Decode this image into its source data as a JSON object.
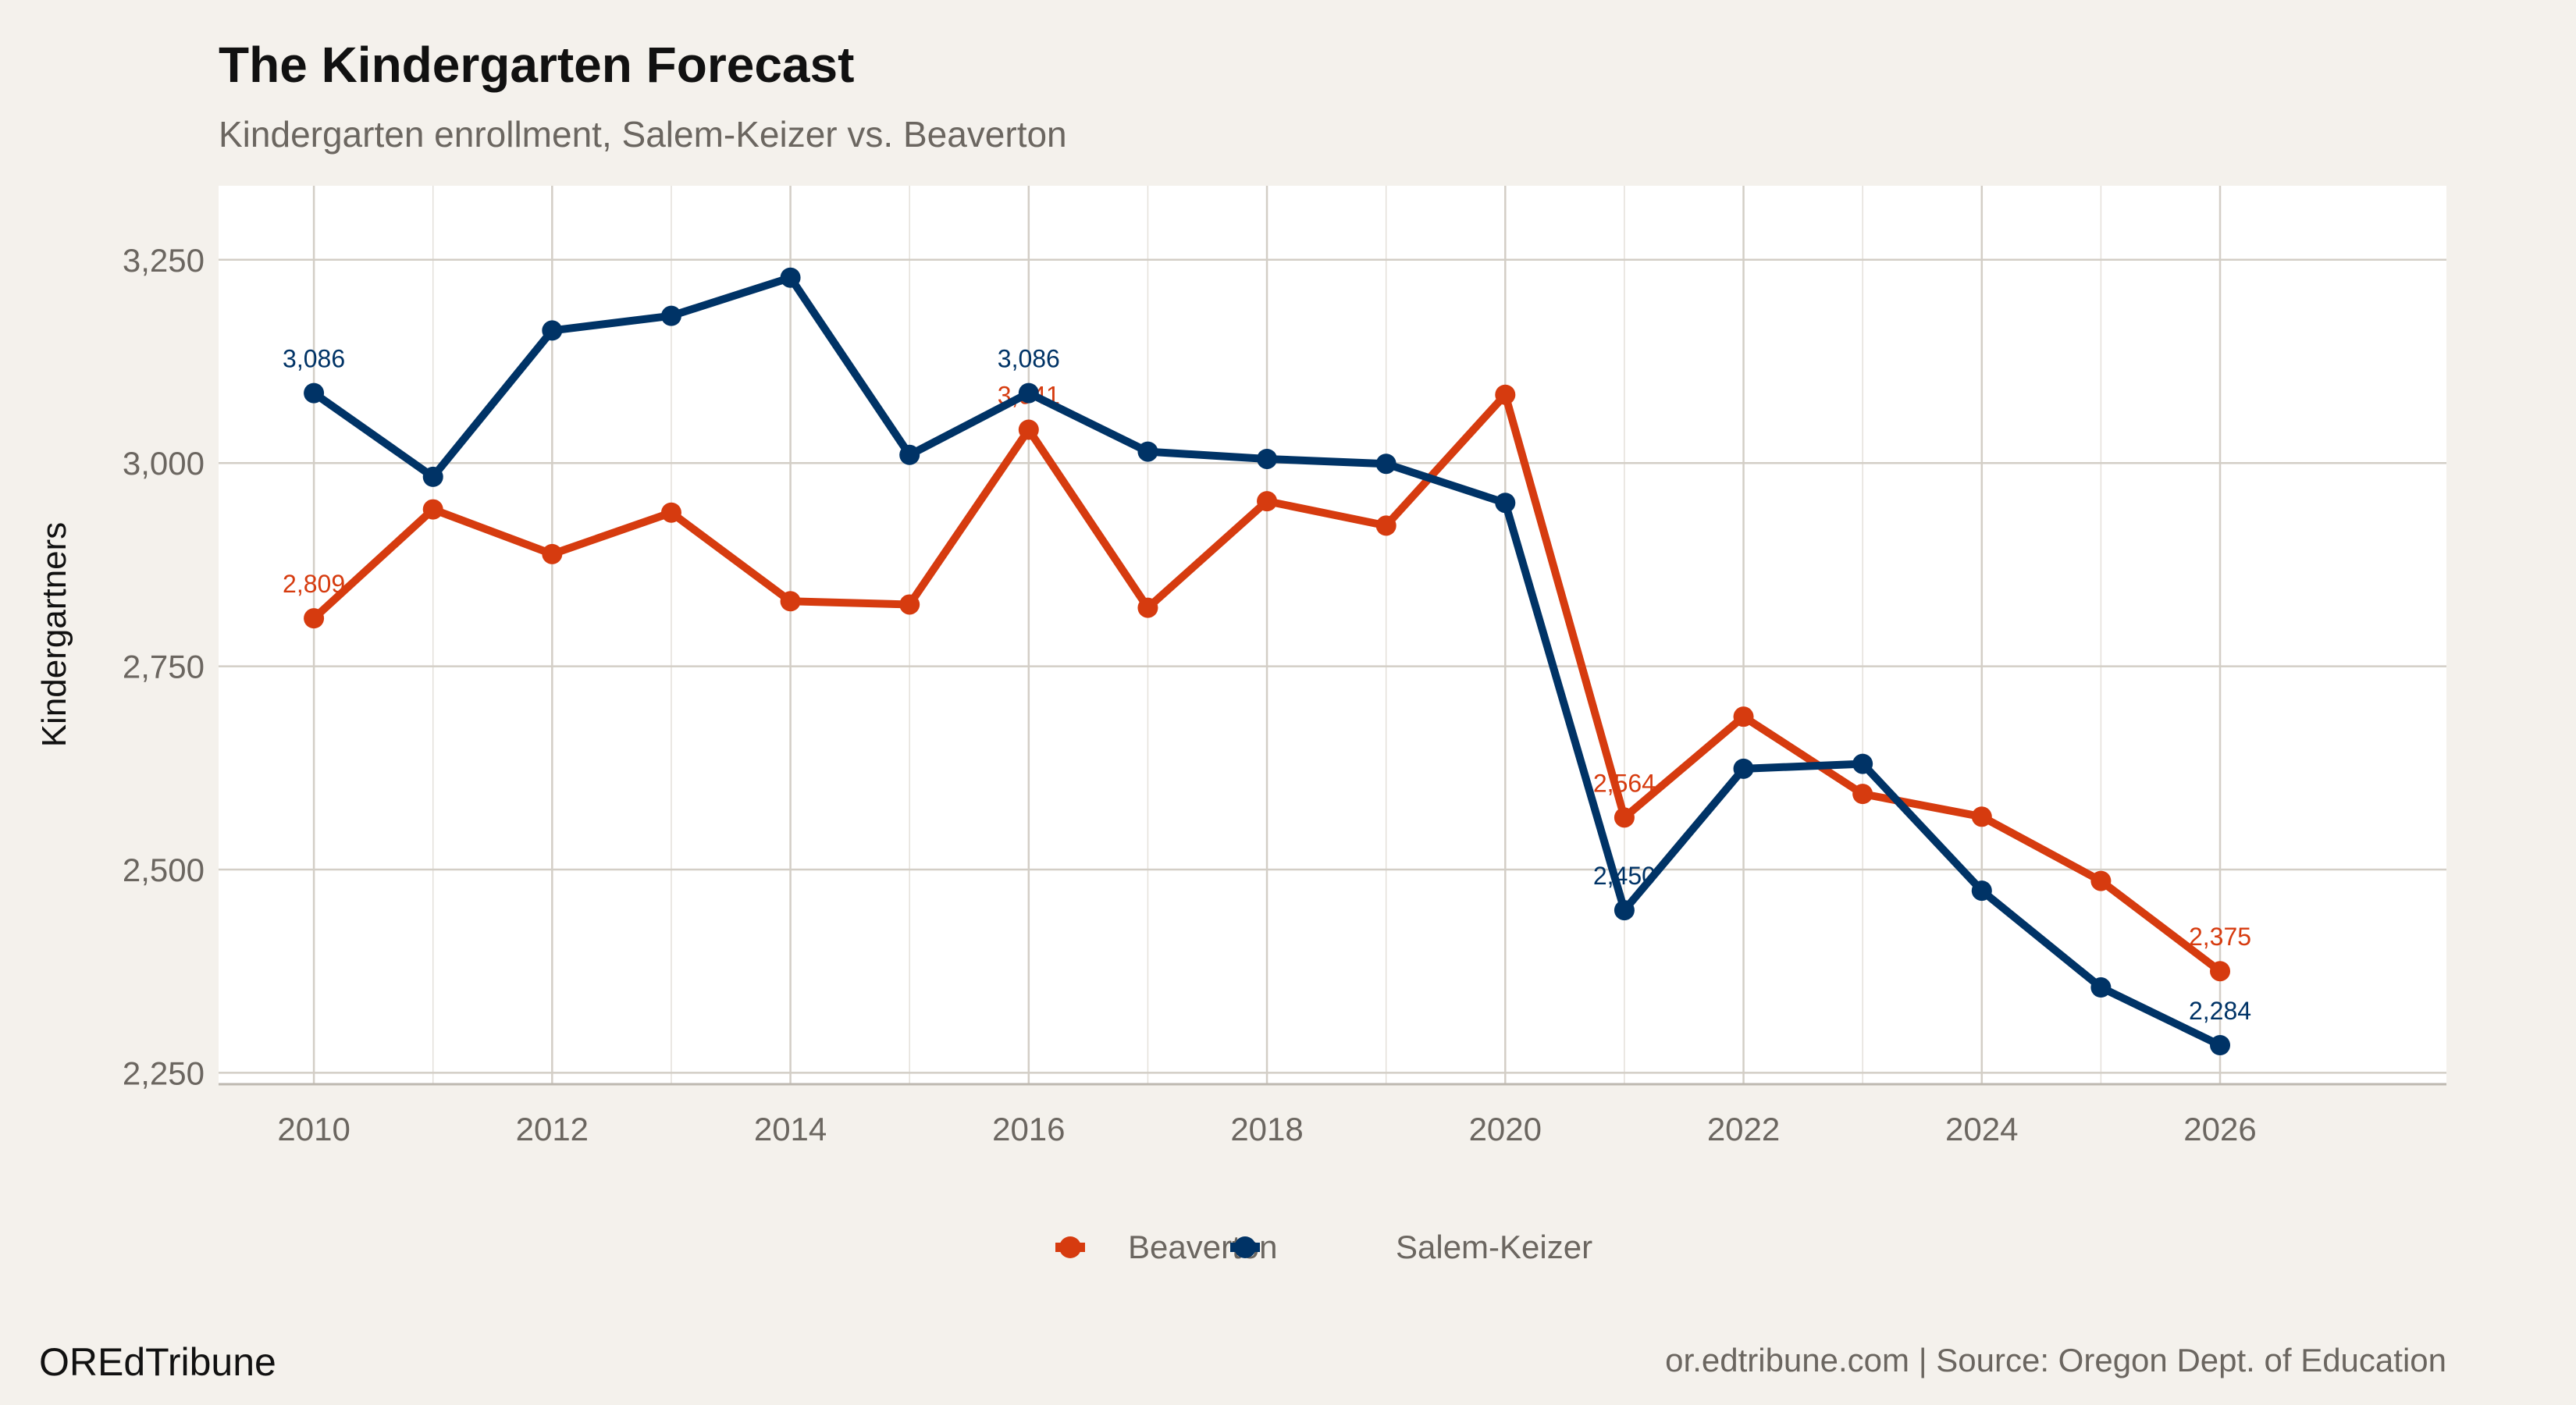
{
  "title": "The Kindergarten Forecast",
  "subtitle": "Kindergarten enrollment, Salem-Keizer vs. Beaverton",
  "footer_left": "OREdTribune",
  "footer_right": "or.edtribune.com | Source: Oregon Dept. of Education",
  "colors": {
    "Beaverton": "#d63b0f",
    "Salem-Keizer": "#003366",
    "background": "#f4f1ec",
    "panel": "#ffffff",
    "grid": "#d3cec6"
  },
  "chart_data": {
    "type": "line",
    "title": "The Kindergarten Forecast",
    "subtitle": "Kindergarten enrollment, Salem-Keizer vs. Beaverton",
    "xlabel": "",
    "ylabel": "Kindergartners",
    "x": [
      2010,
      2011,
      2012,
      2013,
      2014,
      2015,
      2016,
      2017,
      2018,
      2019,
      2020,
      2021,
      2022,
      2023,
      2024,
      2025,
      2026
    ],
    "xlim": [
      2009.2,
      2027.9
    ],
    "ylim": [
      2236,
      3341
    ],
    "xticks": [
      "2010",
      "2012",
      "2014",
      "2016",
      "2018",
      "2020",
      "2022",
      "2024",
      "2026"
    ],
    "yticks": [
      "2,250",
      "2,500",
      "2,750",
      "3,000",
      "3,250"
    ],
    "grid": true,
    "legend": "bottom",
    "series": [
      {
        "name": "Beaverton",
        "color": "#d63b0f",
        "values": [
          2809,
          2943,
          2888,
          2939,
          2830,
          2826,
          3041,
          2822,
          2953,
          2923,
          3084,
          2564,
          2688,
          2593,
          2565,
          2486,
          2375
        ],
        "labels": {
          "2010": "2,809",
          "2016": "3,041",
          "2021": "2,564",
          "2026": "2,375"
        }
      },
      {
        "name": "Salem-Keizer",
        "color": "#003366",
        "values": [
          3086,
          2983,
          3163,
          3181,
          3228,
          3010,
          3086,
          3014,
          3005,
          2999,
          2951,
          2450,
          2624,
          2630,
          2474,
          2355,
          2284
        ],
        "labels": {
          "2010": "3,086",
          "2016": "3,086",
          "2021": "2,450",
          "2026": "2,284"
        }
      }
    ]
  }
}
